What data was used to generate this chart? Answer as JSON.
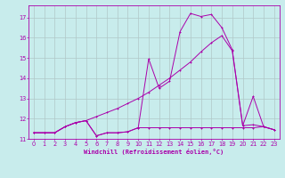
{
  "title": "",
  "xlabel": "Windchill (Refroidissement éolien,°C)",
  "ylabel": "",
  "background_color": "#c8ecec",
  "grid_color": "#b0c8c8",
  "line_color": "#aa00aa",
  "xmin": -0.5,
  "xmax": 23.5,
  "ymin": 11.0,
  "ymax": 17.6,
  "yticks": [
    11,
    12,
    13,
    14,
    15,
    16,
    17
  ],
  "xticks": [
    0,
    1,
    2,
    3,
    4,
    5,
    6,
    7,
    8,
    9,
    10,
    11,
    12,
    13,
    14,
    15,
    16,
    17,
    18,
    19,
    20,
    21,
    22,
    23
  ],
  "line1_x": [
    0,
    1,
    2,
    3,
    4,
    5,
    6,
    7,
    8,
    9,
    10,
    11,
    12,
    13,
    14,
    15,
    16,
    17,
    18,
    19,
    20,
    21,
    22,
    23
  ],
  "line1_y": [
    11.3,
    11.3,
    11.3,
    11.6,
    11.8,
    11.9,
    11.15,
    11.3,
    11.3,
    11.35,
    11.55,
    11.55,
    11.55,
    11.55,
    11.55,
    11.55,
    11.55,
    11.55,
    11.55,
    11.55,
    11.55,
    11.55,
    11.6,
    11.45
  ],
  "line2_x": [
    0,
    1,
    2,
    3,
    4,
    5,
    6,
    7,
    8,
    9,
    10,
    11,
    12,
    13,
    14,
    15,
    16,
    17,
    18,
    19,
    20,
    21,
    22,
    23
  ],
  "line2_y": [
    11.3,
    11.3,
    11.3,
    11.6,
    11.8,
    11.9,
    11.15,
    11.3,
    11.3,
    11.35,
    11.55,
    14.95,
    13.5,
    13.85,
    16.3,
    17.2,
    17.05,
    17.15,
    16.5,
    15.4,
    11.65,
    13.1,
    11.6,
    11.45
  ],
  "line3_x": [
    0,
    1,
    2,
    3,
    4,
    5,
    6,
    7,
    8,
    9,
    10,
    11,
    12,
    13,
    14,
    15,
    16,
    17,
    18,
    19,
    20,
    21,
    22,
    23
  ],
  "line3_y": [
    11.3,
    11.3,
    11.3,
    11.6,
    11.8,
    11.9,
    12.1,
    12.3,
    12.5,
    12.75,
    13.0,
    13.3,
    13.65,
    14.0,
    14.4,
    14.8,
    15.3,
    15.75,
    16.1,
    15.35,
    11.65,
    11.7,
    11.6,
    11.45
  ]
}
